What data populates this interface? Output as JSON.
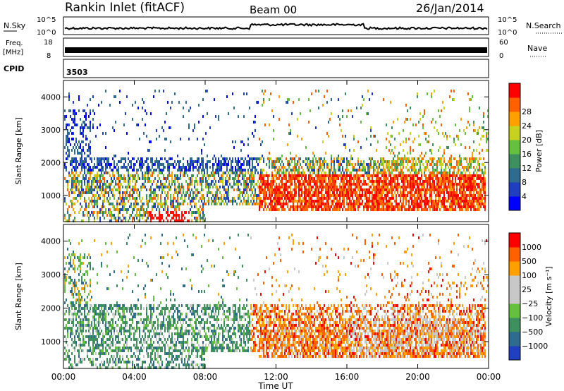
{
  "header": {
    "station": "Rankin Inlet (fitACF)",
    "beam": "Beam 00",
    "date": "26/Jan/2014"
  },
  "strips": {
    "noise": {
      "left_label": "N.Sky",
      "right_label": "N.Search",
      "left_ticks": [
        "10^5",
        "10^0"
      ],
      "right_ticks": [
        "10^5",
        "10^0"
      ]
    },
    "freq": {
      "left_label": "Freq.",
      "left_unit": "[MHz]",
      "right_label": "Nave",
      "left_ticks": [
        "18",
        "8"
      ],
      "right_ticks": [
        "60",
        "0"
      ]
    },
    "cpid": {
      "label": "CPID",
      "value": "3503"
    }
  },
  "colors": {
    "power_scale": [
      "#0000ff",
      "#1f3fbf",
      "#2e6b8e",
      "#3f8f5f",
      "#66c040",
      "#c8d020",
      "#ffa000",
      "#ff6000",
      "#ff0000"
    ],
    "velocity_scale": [
      "#2040c0",
      "#2e6b8e",
      "#3f8f5f",
      "#66c040",
      "#c8c8c8",
      "#c8c8c8",
      "#ffa000",
      "#ff6000",
      "#ff0000"
    ]
  },
  "chart_data": [
    {
      "type": "heatmap",
      "panel": "power",
      "ylabel": "Slant Range [km]",
      "yticks": [
        "1000",
        "2000",
        "3000",
        "4000"
      ],
      "ylim": [
        200,
        4500
      ],
      "xlim": [
        0,
        24
      ],
      "colorbar": {
        "label": "Power [dB]",
        "ticks": [
          "4",
          "8",
          "12",
          "16",
          "20",
          "24",
          "28"
        ],
        "range": [
          0,
          32
        ]
      }
    },
    {
      "type": "heatmap",
      "panel": "velocity",
      "ylabel": "Slant Range [km]",
      "yticks": [
        "1000",
        "2000",
        "3000",
        "4000"
      ],
      "ylim": [
        200,
        4500
      ],
      "xlim": [
        0,
        24
      ],
      "xlabel": "Time UT",
      "xticks": [
        "00:00",
        "04:00",
        "08:00",
        "12:00",
        "16:00",
        "20:00",
        "00:00"
      ],
      "colorbar": {
        "label": "Velocity [m s⁻¹]",
        "ticks": [
          "1000",
          "500",
          "100",
          "25",
          "−25",
          "−100",
          "−500",
          "−1000"
        ]
      }
    }
  ]
}
